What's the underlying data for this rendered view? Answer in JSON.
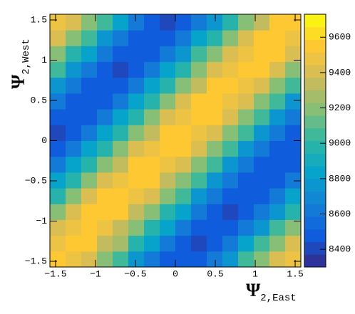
{
  "chart_data": {
    "type": "heatmap",
    "x_label": {
      "symbol": "Ψ",
      "subscript": "2,East"
    },
    "y_label": {
      "symbol": "Ψ",
      "subscript": "2,West"
    },
    "xlim": [
      -1.5708,
      1.5708
    ],
    "ylim": [
      -1.5708,
      1.5708
    ],
    "zlim": [
      8300,
      9730
    ],
    "xticks": [
      {
        "value": -1.5,
        "label": "−1.5"
      },
      {
        "value": -1,
        "label": "−1"
      },
      {
        "value": -0.5,
        "label": "−0.5"
      },
      0,
      0.5,
      1,
      1.5
    ],
    "yticks": [
      {
        "value": -1.5,
        "label": "−1.5"
      },
      {
        "value": -1,
        "label": "−1"
      },
      {
        "value": -0.5,
        "label": "−0.5"
      },
      0,
      0.5,
      1,
      1.5
    ],
    "zticks": [
      8400,
      8600,
      8800,
      9000,
      9200,
      9400,
      9600
    ],
    "colormap": [
      "#35298a",
      "#0f5cdd",
      "#1481d6",
      "#06a4ca",
      "#2eb7a4",
      "#87bf77",
      "#d1bb59",
      "#fec832",
      "#f9fb0e"
    ],
    "values": [
      [
        9571,
        9482,
        9402,
        9196,
        9023,
        8771,
        8630,
        8478,
        8466,
        8475,
        8629,
        8770,
        9018,
        9190,
        9407,
        9489
      ],
      [
        9490,
        9566,
        9521,
        9372,
        9230,
        8984,
        8805,
        8596,
        8510,
        8437,
        8505,
        8598,
        8807,
        9015,
        9193,
        9406
      ],
      [
        9405,
        9491,
        9568,
        9494,
        9371,
        9229,
        8982,
        8803,
        8625,
        8477,
        8463,
        8508,
        8597,
        8770,
        9017,
        9195
      ],
      [
        9228,
        9373,
        9522,
        9536,
        9525,
        9370,
        9226,
        8985,
        8806,
        8597,
        8508,
        8436,
        8479,
        8627,
        8772,
        9014
      ],
      [
        8983,
        9229,
        9375,
        9524,
        9563,
        9490,
        9404,
        9197,
        9016,
        8773,
        8626,
        8479,
        8464,
        8507,
        8595,
        8804
      ],
      [
        8806,
        8986,
        9227,
        9374,
        9493,
        9570,
        9521,
        9372,
        9195,
        9018,
        8772,
        8628,
        8478,
        8466,
        8506,
        8594
      ],
      [
        8596,
        8805,
        8982,
        9228,
        9372,
        9524,
        9537,
        9494,
        9406,
        9194,
        9017,
        8771,
        8627,
        8477,
        8465,
        8507
      ],
      [
        8508,
        8595,
        8806,
        8985,
        9229,
        9373,
        9491,
        9566,
        9523,
        9375,
        9195,
        9016,
        8773,
        8628,
        8478,
        8464
      ],
      [
        8436,
        8507,
        8597,
        8804,
        8984,
        9227,
        9372,
        9522,
        9568,
        9492,
        9405,
        9196,
        9015,
        8772,
        8626,
        8479
      ],
      [
        8478,
        8465,
        8506,
        8596,
        8805,
        8983,
        9228,
        9374,
        9491,
        9564,
        9524,
        9373,
        9196,
        9017,
        8773,
        8627
      ],
      [
        8627,
        8478,
        8464,
        8507,
        8595,
        8806,
        8985,
        9227,
        9373,
        9523,
        9536,
        9491,
        9404,
        9195,
        9016,
        8772
      ],
      [
        8773,
        8626,
        8477,
        8465,
        8508,
        8596,
        8804,
        8984,
        9228,
        9372,
        9522,
        9567,
        9493,
        9405,
        9194,
        9017
      ],
      [
        9016,
        8772,
        8627,
        8478,
        8436,
        8506,
        8597,
        8805,
        8983,
        9229,
        9374,
        9490,
        9565,
        9524,
        9373,
        9195
      ],
      [
        9227,
        8984,
        8806,
        8595,
        8507,
        8464,
        8477,
        8628,
        8772,
        9016,
        9196,
        9406,
        9492,
        9569,
        9521,
        9374
      ],
      [
        9405,
        9195,
        9017,
        8773,
        8626,
        8478,
        8466,
        8506,
        8596,
        8805,
        8985,
        9228,
        9373,
        9523,
        9538,
        9492
      ],
      [
        9491,
        9406,
        9194,
        9015,
        8806,
        8595,
        8508,
        8437,
        8479,
        8627,
        8771,
        8986,
        9229,
        9372,
        9524,
        9571
      ]
    ]
  }
}
